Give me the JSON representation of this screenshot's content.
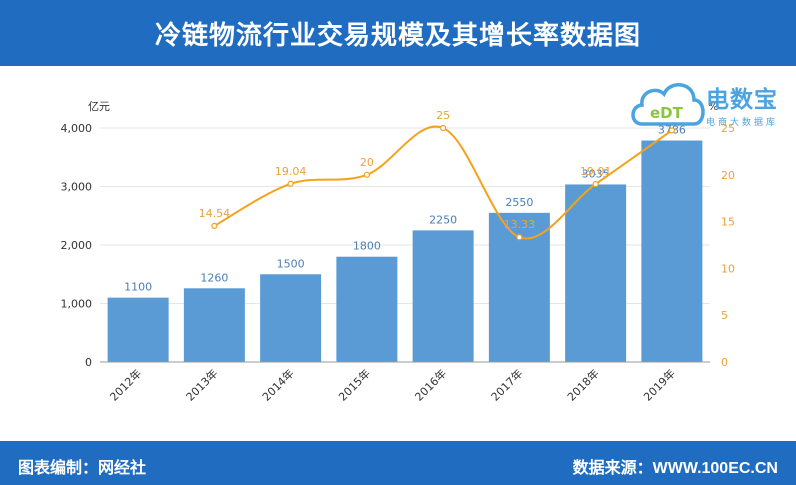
{
  "header": {
    "title": "冷链物流行业交易规模及其增长率数据图"
  },
  "footer": {
    "left": "图表编制：网经社",
    "right": "数据来源：WWW.100EC.CN"
  },
  "logo": {
    "main": "电数宝",
    "sub": "电商大数据库",
    "badge": "eDT"
  },
  "chart_data": {
    "type": "bar+line",
    "categories": [
      "2012年",
      "2013年",
      "2014年",
      "2015年",
      "2016年",
      "2017年",
      "2018年",
      "2019年"
    ],
    "y_left": {
      "label": "亿元",
      "ticks": [
        "0",
        "1,000",
        "2,000",
        "3,000",
        "4,000"
      ],
      "range": [
        0,
        4000
      ]
    },
    "y_right": {
      "label": "%",
      "ticks": [
        "0",
        "5",
        "10",
        "15",
        "20",
        "25"
      ],
      "range": [
        0,
        25
      ]
    },
    "series": [
      {
        "type": "bar",
        "values": [
          1100,
          1260,
          1500,
          1800,
          2250,
          2550,
          3035,
          3786
        ],
        "labels": [
          "1100",
          "1260",
          "1500",
          "1800",
          "2250",
          "2550",
          "3035",
          "3786"
        ],
        "color": "#5b9bd5",
        "label_color": "#4a7fb5"
      },
      {
        "type": "line",
        "values": [
          null,
          14.54,
          19.04,
          20,
          25,
          13.33,
          19.01,
          24.74
        ],
        "labels": [
          "",
          "14.54",
          "19.04",
          "20",
          "25",
          "13.33",
          "19.01",
          "24.74"
        ],
        "color": "#f5a21b",
        "label_color": "#e8a33a"
      }
    ]
  }
}
